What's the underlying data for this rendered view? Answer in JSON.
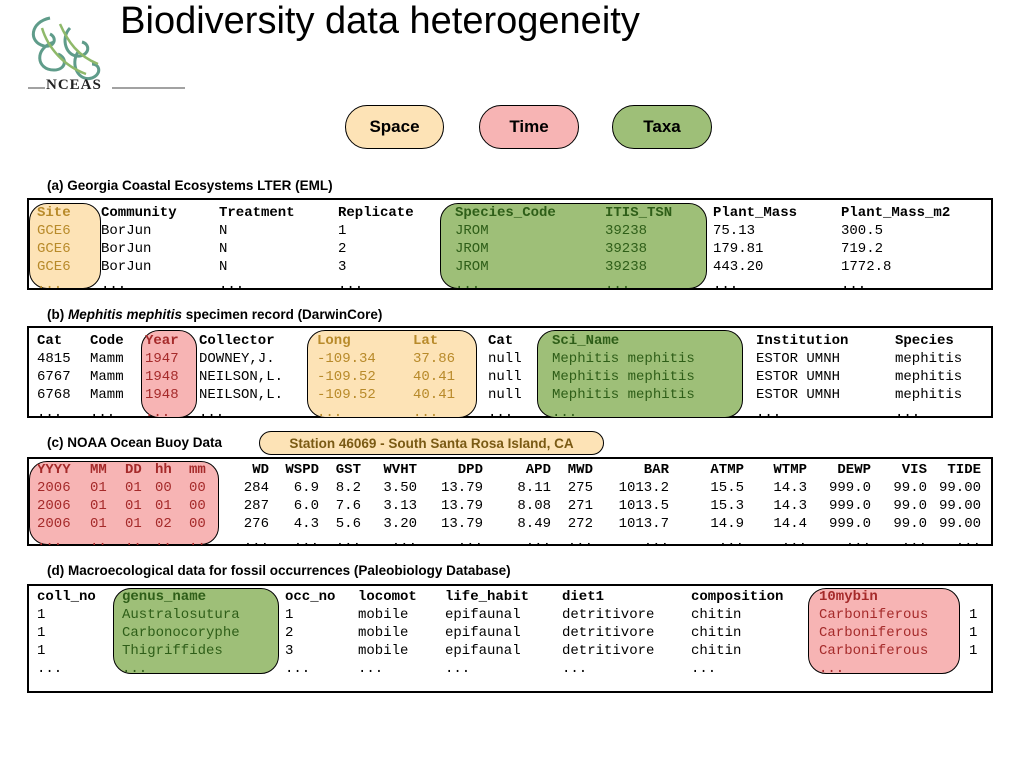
{
  "title": "Biodiversity data heterogeneity",
  "logo": {
    "text": "NCEAS",
    "icon": "nceas-fern-logo"
  },
  "legend": {
    "space": "Space",
    "time": "Time",
    "taxa": "Taxa",
    "colors": {
      "space": "#fde3b6",
      "time": "#f7b4b4",
      "taxa": "#9ebf78"
    }
  },
  "tables": {
    "a": {
      "caption": "(a) Georgia Coastal Ecosystems LTER (EML)",
      "headers": [
        "Site",
        "Community",
        "Treatment",
        "Replicate",
        "Species_Code",
        "ITIS_TSN",
        "Plant_Mass",
        "Plant_Mass_m2"
      ],
      "rows": [
        [
          "GCE6",
          "BorJun",
          "N",
          "1",
          "JROM",
          "39238",
          "75.13",
          "300.5"
        ],
        [
          "GCE6",
          "BorJun",
          "N",
          "2",
          "JROM",
          "39238",
          "179.81",
          "719.2"
        ],
        [
          "GCE6",
          "BorJun",
          "N",
          "3",
          "JROM",
          "39238",
          "443.20",
          "1772.8"
        ],
        [
          "...",
          "...",
          "...",
          "...",
          "...",
          "...",
          "...",
          "..."
        ]
      ]
    },
    "b": {
      "caption_prefix": "(b) ",
      "caption_italic": "Mephitis mephitis",
      "caption_suffix": " specimen record (DarwinCore)",
      "headers": [
        "Cat",
        "Code",
        "Year",
        "Collector",
        "Long",
        "Lat",
        "Cat",
        "Sci_Name",
        "Institution",
        "Species"
      ],
      "rows": [
        [
          "4815",
          "Mamm",
          "1947",
          "DOWNEY,J.",
          "-109.34",
          "37.86",
          "null",
          "Mephitis mephitis",
          "ESTOR UMNH",
          "mephitis"
        ],
        [
          "6767",
          "Mamm",
          "1948",
          "NEILSON,L.",
          "-109.52",
          "40.41",
          "null",
          "Mephitis mephitis",
          "ESTOR UMNH",
          "mephitis"
        ],
        [
          "6768",
          "Mamm",
          "1948",
          "NEILSON,L.",
          "-109.52",
          "40.41",
          "null",
          "Mephitis mephitis",
          "ESTOR UMNH",
          "mephitis"
        ],
        [
          "...",
          "...",
          "...",
          "...",
          "...",
          "...",
          "...",
          "...",
          "...",
          "..."
        ]
      ]
    },
    "c": {
      "caption": "(c) NOAA Ocean Buoy Data",
      "station": "Station 46069 - South Santa Rosa Island, CA",
      "headers": [
        "YYYY",
        "MM",
        "DD",
        "hh",
        "mm",
        "WD",
        "WSPD",
        "GST",
        "WVHT",
        "DPD",
        "APD",
        "MWD",
        "BAR",
        "ATMP",
        "WTMP",
        "DEWP",
        "VIS",
        "TIDE"
      ],
      "rows": [
        [
          "2006",
          "01",
          "01",
          "00",
          "00",
          "284",
          "6.9",
          "8.2",
          "3.50",
          "13.79",
          "8.11",
          "275",
          "1013.2",
          "15.5",
          "14.3",
          "999.0",
          "99.0",
          "99.00"
        ],
        [
          "2006",
          "01",
          "01",
          "01",
          "00",
          "287",
          "6.0",
          "7.6",
          "3.13",
          "13.79",
          "8.08",
          "271",
          "1013.5",
          "15.3",
          "14.3",
          "999.0",
          "99.0",
          "99.00"
        ],
        [
          "2006",
          "01",
          "01",
          "02",
          "00",
          "276",
          "4.3",
          "5.6",
          "3.20",
          "13.79",
          "8.49",
          "272",
          "1013.7",
          "14.9",
          "14.4",
          "999.0",
          "99.0",
          "99.00"
        ],
        [
          "...",
          "..",
          "..",
          "..",
          "..",
          "...",
          "...",
          "...",
          "...",
          "...",
          "...",
          "...",
          "...",
          "...",
          "...",
          "...",
          "...",
          "..."
        ]
      ]
    },
    "d": {
      "caption": "(d) Macroecological data for fossil occurrences (Paleobiology Database)",
      "headers": [
        "coll_no",
        "genus_name",
        "occ_no",
        "locomot",
        "life_habit",
        "diet1",
        "composition",
        "10mybin",
        ""
      ],
      "rows": [
        [
          "1",
          "Australosutura",
          "1",
          "mobile",
          "epifaunal",
          "detritivore",
          "chitin",
          "Carboniferous",
          "1"
        ],
        [
          "1",
          "Carbonocoryphe",
          "2",
          "mobile",
          "epifaunal",
          "detritivore",
          "chitin",
          "Carboniferous",
          "1"
        ],
        [
          "1",
          "Thigriffides",
          "3",
          "mobile",
          "epifaunal",
          "detritivore",
          "chitin",
          "Carboniferous",
          "1"
        ],
        [
          "...",
          "...",
          "...",
          "...",
          "...",
          "...",
          "...",
          "...",
          ""
        ]
      ]
    }
  }
}
